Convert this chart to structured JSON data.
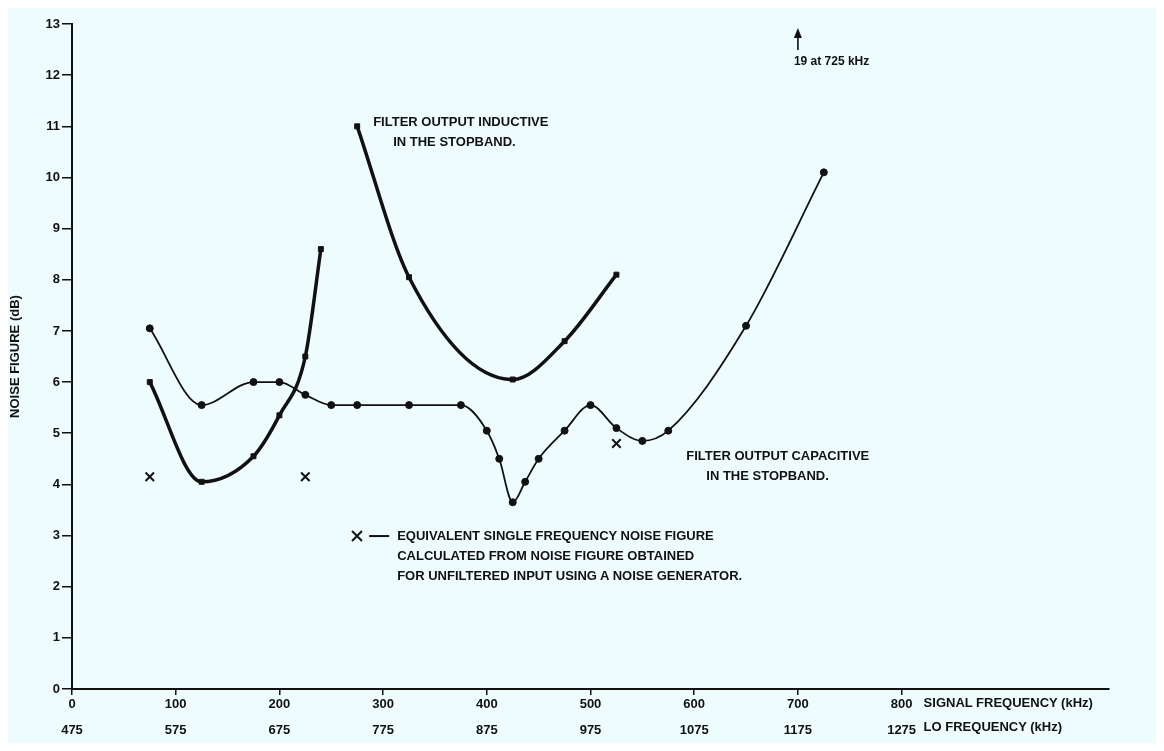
{
  "chart_data": {
    "type": "line",
    "xlabel": "SIGNAL FREQUENCY (kHz)",
    "x2label": "LO FREQUENCY (kHz)",
    "ylabel": "NOISE FIGURE (dB)",
    "xlim": [
      0,
      1000
    ],
    "xticks": [
      0,
      100,
      200,
      300,
      400,
      500,
      600,
      700,
      800
    ],
    "x2lim": [
      475,
      1475
    ],
    "x2ticks": [
      475,
      575,
      675,
      775,
      875,
      975,
      1075,
      1175,
      1275
    ],
    "ylim": [
      0,
      13
    ],
    "yticks": [
      0,
      1,
      2,
      3,
      4,
      5,
      6,
      7,
      8,
      9,
      10,
      11,
      12,
      13
    ],
    "grid": false,
    "legend": "bottom",
    "series": [
      {
        "name": "FILTER OUTPUT INDUCTIVE\nIN THE STOPBAND.",
        "type": "line",
        "marker": "square",
        "color": "#111111",
        "x": [
          275,
          325,
          425,
          475,
          525
        ],
        "values": [
          11.0,
          8.05,
          6.05,
          6.8,
          8.1
        ]
      },
      {
        "name": "FILTER OUTPUT CAPACITIVE\nIN THE STOPBAND.",
        "type": "line",
        "marker": "circle",
        "color": "#111111",
        "x": [
          75,
          125,
          175,
          200,
          225,
          250,
          275,
          325,
          375,
          400,
          412,
          425,
          437,
          450,
          475,
          500,
          525,
          550,
          575,
          650,
          725
        ],
        "values": [
          7.05,
          5.55,
          6.0,
          6.0,
          5.75,
          5.55,
          5.55,
          5.55,
          5.55,
          5.05,
          4.5,
          3.65,
          4.05,
          4.5,
          5.05,
          5.55,
          5.1,
          4.85,
          5.05,
          7.1,
          10.1
        ]
      },
      {
        "type": "line",
        "marker": "square",
        "color": "#111111",
        "x": [
          75,
          125,
          175,
          200,
          225,
          240
        ],
        "values": [
          6.0,
          4.05,
          4.55,
          5.35,
          6.5,
          8.6
        ]
      },
      {
        "name": "EQUIVALENT SINGLE FREQUENCY NOISE FIGURE\nCALCULATED FROM NOISE FIGURE OBTAINED\nFOR UNFILTERED INPUT USING A NOISE GENERATOR.",
        "type": "scatter",
        "marker": "cross",
        "color": "#111111",
        "x": [
          75,
          225,
          525
        ],
        "values": [
          4.15,
          4.15,
          4.8
        ]
      }
    ],
    "annotations": [
      "19 at 725 kHz"
    ]
  }
}
